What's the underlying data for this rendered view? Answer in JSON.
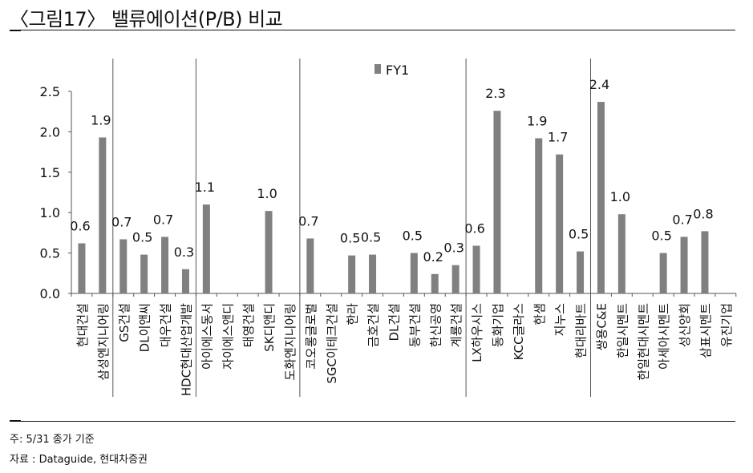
{
  "title": "〈그림17〉 밸류에이션(P/B) 비교",
  "notes": {
    "note": "주: 5/31 종가 기준",
    "source": "자료 : Dataguide, 현대차증권"
  },
  "colors": {
    "bar": "#808080",
    "axis": "#555555",
    "divider": "#555555"
  },
  "chart_data": {
    "type": "bar",
    "categories": [
      "현대건설",
      "삼성엔지니어링",
      "GS건설",
      "DL이앤씨",
      "대우건설",
      "HDC현대산업개발",
      "아이에스동서",
      "자이에스앤디",
      "태영건설",
      "SK디앤디",
      "도화엔지니어링",
      "코오롱글로벌",
      "SGC이테크건설",
      "한라",
      "금호건설",
      "DL건설",
      "동부건설",
      "한신공영",
      "계룡건설",
      "LX하우시스",
      "동화기업",
      "KCC글라스",
      "한샘",
      "지누스",
      "현대리바트",
      "쌍용C&E",
      "한일시멘트",
      "한일현대시멘트",
      "아세아시멘트",
      "성신양회",
      "삼표시멘트",
      "유진기업"
    ],
    "series": [
      {
        "name": "FY1",
        "values": [
          0.62,
          1.93,
          0.67,
          0.48,
          0.7,
          0.3,
          1.1,
          null,
          null,
          1.02,
          null,
          0.68,
          null,
          0.47,
          0.48,
          null,
          0.5,
          0.24,
          0.35,
          0.59,
          2.26,
          null,
          1.92,
          1.72,
          0.52,
          2.37,
          0.98,
          null,
          0.5,
          0.7,
          0.77,
          null
        ],
        "labels": [
          "0.6",
          "1.9",
          "0.7",
          "0.5",
          "0.7",
          "0.3",
          "1.1",
          "",
          "",
          "1.0",
          "",
          "0.7",
          "",
          "0.5",
          "0.5",
          "",
          "0.5",
          "0.2",
          "0.3",
          "0.6",
          "2.3",
          "",
          "1.9",
          "1.7",
          "0.5",
          "2.4",
          "1.0",
          "",
          "0.5",
          "0.7",
          "0.8",
          ""
        ]
      }
    ],
    "groups": [
      {
        "from": 0,
        "to": 1
      },
      {
        "from": 2,
        "to": 5
      },
      {
        "from": 6,
        "to": 10
      },
      {
        "from": 11,
        "to": 18
      },
      {
        "from": 19,
        "to": 24
      },
      {
        "from": 25,
        "to": 31
      }
    ],
    "y_ticks": [
      "0.0",
      "0.5",
      "1.0",
      "1.5",
      "2.0",
      "2.5"
    ],
    "ylim": [
      0,
      2.5
    ],
    "legend": "top-center",
    "grid": false,
    "xlabel": "",
    "ylabel": ""
  }
}
